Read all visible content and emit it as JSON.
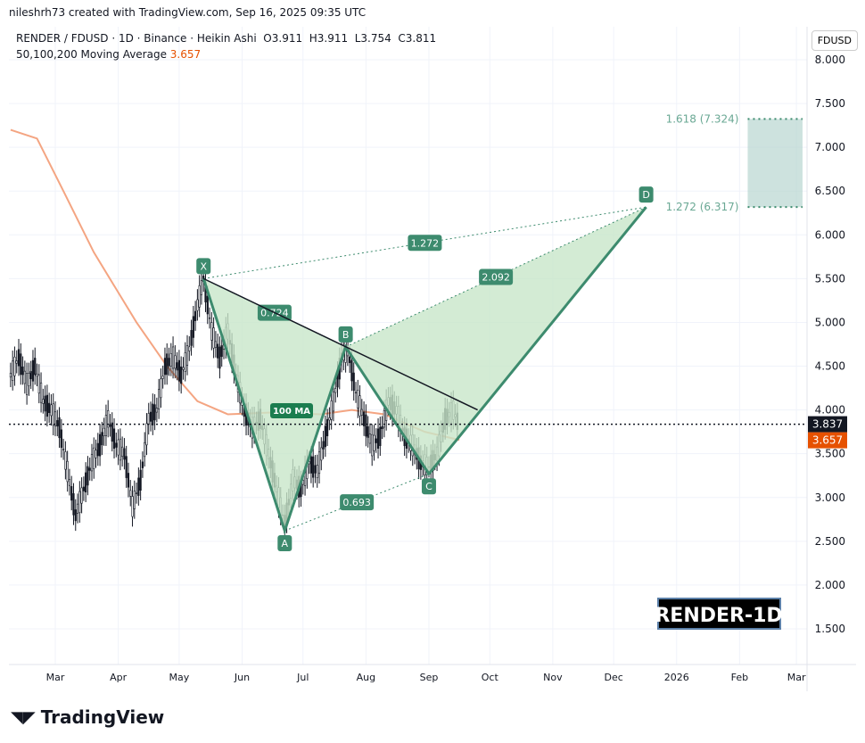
{
  "header": {
    "credit": "nileshrh73 created with TradingView.com, Sep 16, 2025 09:35 UTC",
    "symbol_line": "RENDER / FDUSD · 1D · Binance · Heikin Ashi  O3.911  H3.911  L3.754  C3.811",
    "ma_label": "50,100,200 Moving Average",
    "ma_value": "3.657",
    "currency": "FDUSD"
  },
  "branding": {
    "logo": "TradingView",
    "watermark": "RENDER-1D"
  },
  "colors": {
    "pattern": "#3d8b6e",
    "fill": "#c8e6c9",
    "ma": "#f4a582",
    "ma_badge": "#e65100",
    "box": "#b2d3cc"
  },
  "chart_data": {
    "type": "candlestick",
    "ylim": [
      1.2,
      8.4
    ],
    "yticks": [
      "8.000",
      "7.500",
      "7.000",
      "6.500",
      "6.000",
      "5.500",
      "5.000",
      "4.500",
      "4.000",
      "3.500",
      "3.000",
      "2.500",
      "2.000",
      "1.500"
    ],
    "xticks": [
      [
        "Mar",
        "2025-03-01"
      ],
      [
        "Apr",
        "2025-04-01"
      ],
      [
        "May",
        "2025-05-01"
      ],
      [
        "Jun",
        "2025-06-01"
      ],
      [
        "Jul",
        "2025-07-01"
      ],
      [
        "Aug",
        "2025-08-01"
      ],
      [
        "Sep",
        "2025-09-01"
      ],
      [
        "Oct",
        "2025-10-01"
      ],
      [
        "Nov",
        "2025-11-01"
      ],
      [
        "Dec",
        "2025-12-01"
      ],
      [
        "2026",
        "2026-01-01"
      ],
      [
        "Feb",
        "2026-02-01"
      ],
      [
        "Mar",
        "2026-03-01"
      ]
    ],
    "price_approx": [
      [
        "2025-02-07",
        4.4
      ],
      [
        "2025-02-11",
        4.6
      ],
      [
        "2025-02-15",
        4.3
      ],
      [
        "2025-02-19",
        4.5
      ],
      [
        "2025-02-23",
        4.1
      ],
      [
        "2025-02-27",
        4.0
      ],
      [
        "2025-03-03",
        3.8
      ],
      [
        "2025-03-07",
        3.3
      ],
      [
        "2025-03-11",
        2.8
      ],
      [
        "2025-03-15",
        3.1
      ],
      [
        "2025-03-19",
        3.4
      ],
      [
        "2025-03-23",
        3.6
      ],
      [
        "2025-03-27",
        3.9
      ],
      [
        "2025-03-31",
        3.6
      ],
      [
        "2025-04-04",
        3.5
      ],
      [
        "2025-04-08",
        2.9
      ],
      [
        "2025-04-12",
        3.2
      ],
      [
        "2025-04-16",
        3.9
      ],
      [
        "2025-04-20",
        4.0
      ],
      [
        "2025-04-24",
        4.5
      ],
      [
        "2025-04-28",
        4.6
      ],
      [
        "2025-05-02",
        4.4
      ],
      [
        "2025-05-06",
        4.7
      ],
      [
        "2025-05-10",
        5.2
      ],
      [
        "2025-05-13",
        5.5
      ],
      [
        "2025-05-17",
        4.9
      ],
      [
        "2025-05-21",
        4.6
      ],
      [
        "2025-05-25",
        4.9
      ],
      [
        "2025-05-29",
        4.4
      ],
      [
        "2025-06-02",
        4.0
      ],
      [
        "2025-06-06",
        3.8
      ],
      [
        "2025-06-10",
        3.9
      ],
      [
        "2025-06-14",
        3.5
      ],
      [
        "2025-06-18",
        3.1
      ],
      [
        "2025-06-22",
        2.7
      ],
      [
        "2025-06-26",
        3.2
      ],
      [
        "2025-06-30",
        3.1
      ],
      [
        "2025-07-04",
        3.4
      ],
      [
        "2025-07-08",
        3.3
      ],
      [
        "2025-07-12",
        3.7
      ],
      [
        "2025-07-16",
        4.1
      ],
      [
        "2025-07-20",
        4.6
      ],
      [
        "2025-07-23",
        4.7
      ],
      [
        "2025-07-27",
        4.2
      ],
      [
        "2025-07-31",
        3.9
      ],
      [
        "2025-08-04",
        3.6
      ],
      [
        "2025-08-08",
        3.7
      ],
      [
        "2025-08-12",
        4.1
      ],
      [
        "2025-08-16",
        4.0
      ],
      [
        "2025-08-20",
        3.7
      ],
      [
        "2025-08-24",
        3.6
      ],
      [
        "2025-08-28",
        3.4
      ],
      [
        "2025-09-01",
        3.35
      ],
      [
        "2025-09-05",
        3.5
      ],
      [
        "2025-09-09",
        3.9
      ],
      [
        "2025-09-13",
        4.0
      ],
      [
        "2025-09-16",
        3.81
      ]
    ],
    "ma100": [
      [
        "2025-02-07",
        7.2
      ],
      [
        "2025-02-20",
        7.1
      ],
      [
        "2025-03-05",
        6.5
      ],
      [
        "2025-03-20",
        5.8
      ],
      [
        "2025-04-10",
        5.0
      ],
      [
        "2025-04-25",
        4.5
      ],
      [
        "2025-05-10",
        4.1
      ],
      [
        "2025-05-25",
        3.95
      ],
      [
        "2025-06-15",
        3.97
      ],
      [
        "2025-07-10",
        3.95
      ],
      [
        "2025-07-25",
        4.0
      ],
      [
        "2025-08-10",
        3.95
      ],
      [
        "2025-08-30",
        3.75
      ],
      [
        "2025-09-16",
        3.657
      ]
    ],
    "ma_label": "100 MA",
    "last_price": "3.837",
    "ma_price": "3.657",
    "last_value": 3.837,
    "pattern": [
      {
        "label": "X",
        "date": "2025-05-13",
        "price": 5.5
      },
      {
        "label": "A",
        "date": "2025-06-22",
        "price": 2.62
      },
      {
        "label": "B",
        "date": "2025-07-22",
        "price": 4.72
      },
      {
        "label": "C",
        "date": "2025-09-01",
        "price": 3.27
      },
      {
        "label": "D",
        "date": "2025-12-17",
        "price": 6.317
      }
    ],
    "ratios": [
      {
        "label": "0.724",
        "from": 0,
        "to": 2
      },
      {
        "label": "0.693",
        "from": 1,
        "to": 3
      },
      {
        "label": "2.092",
        "from": 2,
        "to": 4
      },
      {
        "label": "1.272",
        "from": 0,
        "to": 4
      }
    ],
    "trendline": [
      [
        "2025-05-13",
        5.5
      ],
      [
        "2025-09-25",
        4.0
      ]
    ],
    "target_zone": {
      "start": "2026-02-05",
      "end": "2026-03-04",
      "low": 6.317,
      "high": 7.324,
      "low_label": "1.272 (6.317)",
      "high_label": "1.618 (7.324)"
    }
  }
}
